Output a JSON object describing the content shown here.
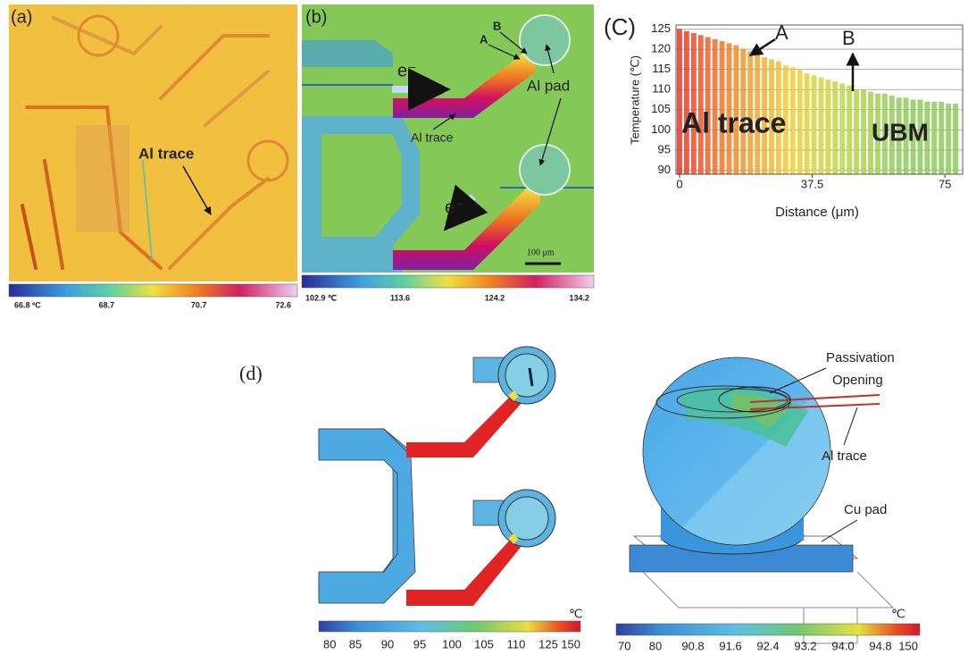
{
  "panel_a": {
    "label": "(a)",
    "annotation": "Al trace",
    "colorbar_ticks": [
      "66.8 ºC",
      "68.7",
      "70.7",
      "72.6"
    ]
  },
  "panel_b": {
    "label": "(b)",
    "electron_labels": [
      "e⁻",
      "e⁻"
    ],
    "point_labels": [
      "A",
      "B"
    ],
    "annotations": [
      "Al pad",
      "Al trace"
    ],
    "scale_bar": "100 μm",
    "colorbar_ticks": [
      "102.9 ℃",
      "113.6",
      "124.2",
      "134.2"
    ]
  },
  "chart_data": {
    "type": "bar",
    "panel_label": "(C)",
    "ylabel": "Temperature (℃)",
    "xlabel": "Distance (μm)",
    "annotations": [
      "A",
      "B",
      "Al trace",
      "UBM"
    ],
    "x": [
      0,
      2,
      4,
      6,
      8,
      10,
      12,
      14,
      16,
      18,
      20,
      22,
      24,
      26,
      28,
      30,
      32,
      34,
      36,
      38,
      40,
      42,
      44,
      46,
      48,
      50,
      52,
      54,
      56,
      58,
      60,
      62,
      64,
      66,
      68,
      70,
      72,
      74,
      76,
      78
    ],
    "values": [
      125,
      124.5,
      124,
      123.5,
      123,
      122.5,
      122,
      121.5,
      121,
      120,
      119.5,
      119,
      118,
      117.5,
      117,
      116,
      115.5,
      115,
      114,
      113.5,
      113,
      112.5,
      112,
      111.5,
      111,
      110,
      110,
      109.5,
      109,
      109,
      108.5,
      108,
      108,
      107.5,
      107.5,
      107,
      107,
      107,
      106.5,
      106.5
    ],
    "colormap": [
      "#e4392b",
      "#f08a2a",
      "#f2cf3a",
      "#b9d84a",
      "#8fcb5a",
      "#8fcb5a"
    ],
    "xlim": [
      -1,
      80
    ],
    "ylim": [
      89,
      126
    ],
    "xticks": [
      0,
      37.5,
      75
    ],
    "yticks": [
      90,
      95,
      100,
      105,
      110,
      115,
      120,
      125
    ],
    "grid": true
  },
  "panel_d": {
    "label": "(d)",
    "left": {
      "unit": "℃",
      "colorbar_ticks": [
        "80",
        "85",
        "90",
        "95",
        "100",
        "105",
        "110",
        "125",
        "150"
      ]
    },
    "right": {
      "unit": "℃",
      "colorbar_ticks": [
        "70",
        "80",
        "90.8",
        "91.6",
        "92.4",
        "93.2",
        "94.0",
        "94.8",
        "150"
      ],
      "annotations": [
        "Passivation",
        "Opening",
        "Al trace",
        "Cu pad"
      ]
    }
  }
}
